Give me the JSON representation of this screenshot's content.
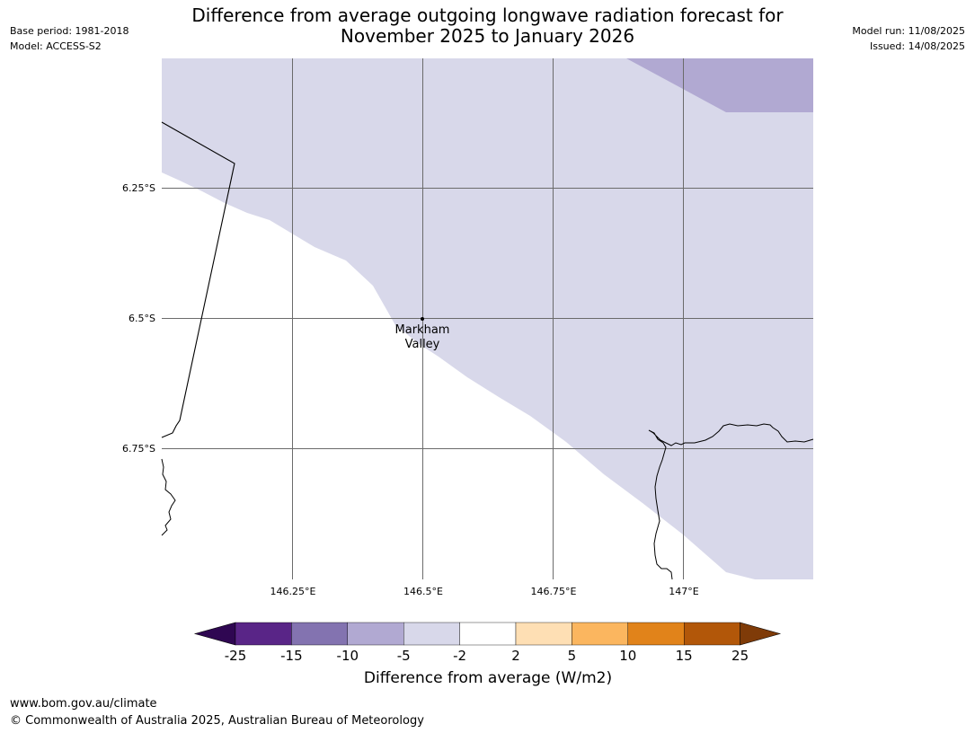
{
  "header": {
    "base_period": "Base period: 1981-2018",
    "model": "Model: ACCESS-S2",
    "model_run": "Model run: 11/08/2025",
    "issued": "Issued: 14/08/2025",
    "title_line1": "Difference from average outgoing longwave radiation forecast for",
    "title_line2": "November 2025 to January 2026"
  },
  "map": {
    "lat_labels": [
      "6.25°S",
      "6.5°S",
      "6.75°S"
    ],
    "lon_labels": [
      "146.25°E",
      "146.5°E",
      "146.75°E",
      "147°E"
    ],
    "place_marker": {
      "name_line1": "Markham",
      "name_line2": "Valley"
    },
    "colors": {
      "region_light": "#d8d8ea",
      "region_mid": "#b1a9d2",
      "background": "#ffffff",
      "gridline": "#6b6b6b",
      "coastline": "#000000"
    }
  },
  "colorbar": {
    "title": "Difference from average (W/m2)",
    "tick_labels": [
      "-25",
      "-15",
      "-10",
      "-5",
      "-2",
      "2",
      "5",
      "10",
      "15",
      "25"
    ],
    "colors": [
      "#592587",
      "#8373b0",
      "#b1a9d2",
      "#d8d8ea",
      "#ffffff",
      "#fedfb4",
      "#fbb65f",
      "#e1831a",
      "#b25709"
    ],
    "under_color": "#2f0752",
    "over_color": "#7f3b08"
  },
  "footer": {
    "url": "www.bom.gov.au/climate",
    "copyright": "© Commonwealth of Australia 2025, Australian Bureau of Meteorology"
  }
}
